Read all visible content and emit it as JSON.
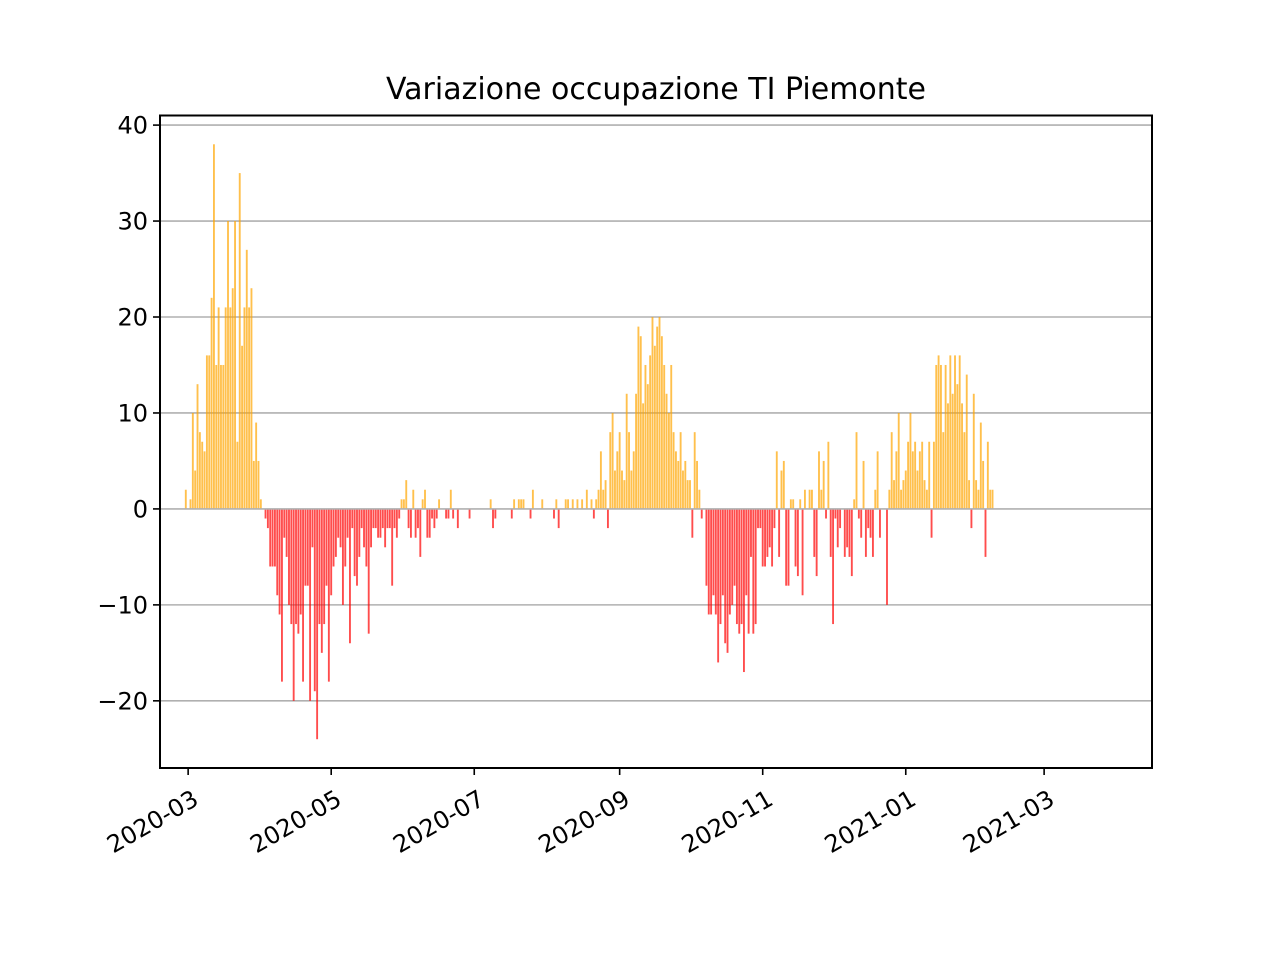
{
  "chart_data": {
    "type": "bar",
    "title": "Variazione occupazione TI Piemonte",
    "xlabel": "",
    "ylabel": "",
    "x_axis": "date",
    "xlim": [
      "2020-02-18",
      "2021-04-16"
    ],
    "ylim": [
      -27,
      41
    ],
    "yticks": [
      -20,
      -10,
      0,
      10,
      20,
      30,
      40
    ],
    "ytick_labels": [
      "−20",
      "−10",
      "0",
      "10",
      "20",
      "30",
      "40"
    ],
    "xticks": [
      "2020-03-01",
      "2020-05-01",
      "2020-07-01",
      "2020-09-01",
      "2020-11-01",
      "2021-01-01",
      "2021-03-01"
    ],
    "xtick_labels": [
      "2020-03",
      "2020-05",
      "2020-07",
      "2020-09",
      "2020-11",
      "2021-01",
      "2021-03"
    ],
    "grid": "y",
    "colors": {
      "positive": "#ffa500",
      "negative": "#ff0000",
      "grid": "#b0b0b0",
      "zero_line": "#b0b0b0"
    },
    "bar_alpha": 0.7,
    "series": [
      {
        "start": "2020-02-29",
        "values": [
          2,
          0,
          1,
          10,
          4,
          13,
          8,
          7,
          6,
          16,
          16,
          22,
          38,
          15,
          21,
          15,
          15,
          21,
          30,
          21,
          23,
          30,
          7,
          35,
          17,
          21,
          27,
          21,
          23,
          5,
          9,
          5,
          1,
          0,
          -1,
          -2,
          -6,
          -6,
          -6,
          -9,
          -11,
          -18,
          -3,
          -5,
          -10,
          -12,
          -20,
          -12,
          -13,
          -11,
          -18,
          -8,
          -8,
          -20,
          -4,
          -19,
          -24,
          -12,
          -15,
          -12,
          -8,
          -18,
          -9,
          -6,
          -5,
          -3,
          -4,
          -10,
          -6,
          -3,
          -14,
          -2,
          -7,
          -8,
          -5,
          -2,
          -4,
          -6,
          -13,
          -4,
          -2,
          -2,
          -3,
          -3,
          -2,
          -4,
          -2,
          -2,
          -8,
          -2,
          -3,
          -1,
          1,
          1,
          3,
          -2,
          -3,
          2,
          -3,
          -2,
          -5,
          1,
          2,
          -3,
          -3,
          -1,
          -2,
          -1,
          1,
          0,
          0,
          -1,
          -1,
          2,
          -1,
          0,
          -2,
          0,
          0,
          0,
          0,
          -1,
          0,
          0,
          0,
          0,
          0,
          0,
          0,
          0,
          1,
          -2,
          -1,
          0,
          0,
          0,
          0,
          0,
          0,
          -1,
          1,
          0,
          1,
          1,
          1,
          0,
          0,
          -1,
          2,
          0,
          0,
          0,
          1,
          0,
          0,
          0,
          0,
          -1,
          1,
          -2,
          0,
          0,
          1,
          1,
          0,
          1,
          0,
          1,
          0,
          1,
          0,
          2,
          0,
          1,
          -1,
          1,
          2,
          6,
          2,
          3,
          -2,
          8,
          10,
          4,
          6,
          8,
          4,
          3,
          12,
          8,
          4,
          6,
          12,
          19,
          18,
          11,
          15,
          13,
          16,
          20,
          17,
          19,
          20,
          18,
          15,
          12,
          10,
          15,
          8,
          6,
          5,
          8,
          4,
          5,
          3,
          3,
          -3,
          8,
          5,
          2,
          -1,
          0,
          -8,
          -11,
          -11,
          -9,
          -11,
          -16,
          -12,
          -9,
          -14,
          -15,
          -11,
          -10,
          -8,
          -12,
          -13,
          -12,
          -17,
          -9,
          -13,
          -5,
          -13,
          -12,
          -2,
          -2,
          -6,
          -6,
          -5,
          -4,
          -6,
          -2,
          6,
          -5,
          4,
          5,
          -8,
          -8,
          1,
          1,
          -6,
          -7,
          1,
          -9,
          2,
          0,
          2,
          2,
          -5,
          -7,
          6,
          2,
          5,
          -1,
          7,
          -5,
          -12,
          -1,
          -4,
          -2,
          0,
          -5,
          -4,
          -5,
          -7,
          1,
          8,
          -1,
          -3,
          5,
          -5,
          -2,
          -3,
          -5,
          2,
          6,
          -3,
          0,
          0,
          -10,
          2,
          8,
          3,
          6,
          10,
          2,
          3,
          4,
          7,
          10,
          6,
          7,
          4,
          6,
          7,
          3,
          2,
          7,
          -3,
          7,
          15,
          16,
          15,
          8,
          15,
          11,
          16,
          12,
          16,
          13,
          16,
          11,
          8,
          14,
          3,
          -2,
          12,
          3,
          2,
          9,
          5,
          -5,
          7,
          2,
          2
        ]
      }
    ]
  }
}
